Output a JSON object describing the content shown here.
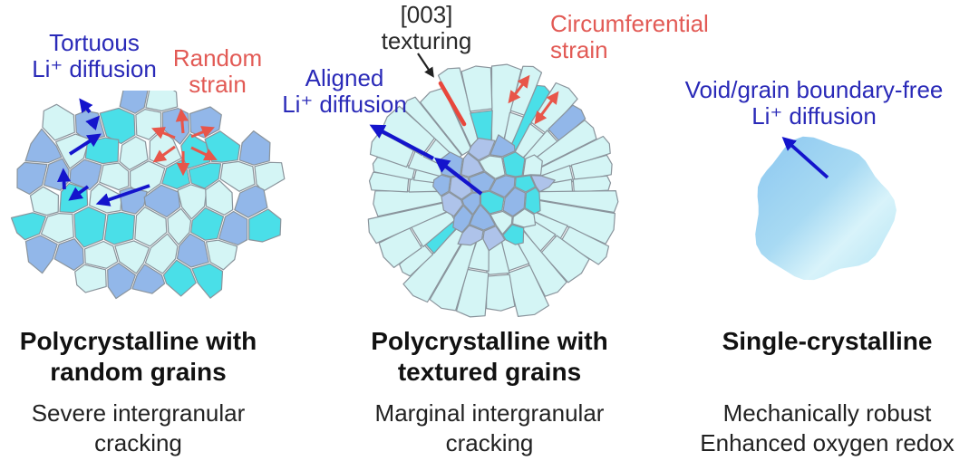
{
  "panels": [
    {
      "name": "polycrystalline-random",
      "ann_diffusion_l1": "Tortuous",
      "ann_diffusion_l2": "Li⁺ diffusion",
      "ann_strain_l1": "Random",
      "ann_strain_l2": "strain",
      "title_l1": "Polycrystalline with",
      "title_l2": "random grains",
      "sub_l1": "Severe intergranular",
      "sub_l2": "cracking"
    },
    {
      "name": "polycrystalline-textured",
      "ann_texturing_l1": "[003]",
      "ann_texturing_l2": "texturing",
      "ann_diffusion_l1": "Aligned",
      "ann_diffusion_l2": "Li⁺ diffusion",
      "ann_strain_l1": "Circumferential",
      "ann_strain_l2": "strain",
      "title_l1": "Polycrystalline with",
      "title_l2": "textured grains",
      "sub_l1": "Marginal intergranular",
      "sub_l2": "cracking"
    },
    {
      "name": "single-crystalline",
      "ann_diffusion_l1": "Void/grain boundary-free",
      "ann_diffusion_l2": "Li⁺ diffusion",
      "title_l1": "Single-crystalline",
      "sub_l1": "Mechanically robust",
      "sub_l2": "Enhanced oxygen redox"
    }
  ],
  "colors": {
    "diffusion_text": "#2a2ab8",
    "strain_text": "#e25a55",
    "texturing_text": "#2a2a2a",
    "arrow_blue": "#1414cc",
    "arrow_red": "#e8564a",
    "texturing_line": "#e8473c",
    "grain_light": "#d4f5f5",
    "grain_cyan": "#4adfe8",
    "grain_blue": "#92b7e9",
    "grain_lavender": "#aec3ea",
    "grain_boundary": "#8a949c",
    "single_crystal_grad_start": "#8cc7f0",
    "single_crystal_grad_mid": "#d8f3fa",
    "single_crystal_grad_end": "#b2e3f4",
    "caption_title": "#111111",
    "caption_subtitle": "#222222"
  }
}
